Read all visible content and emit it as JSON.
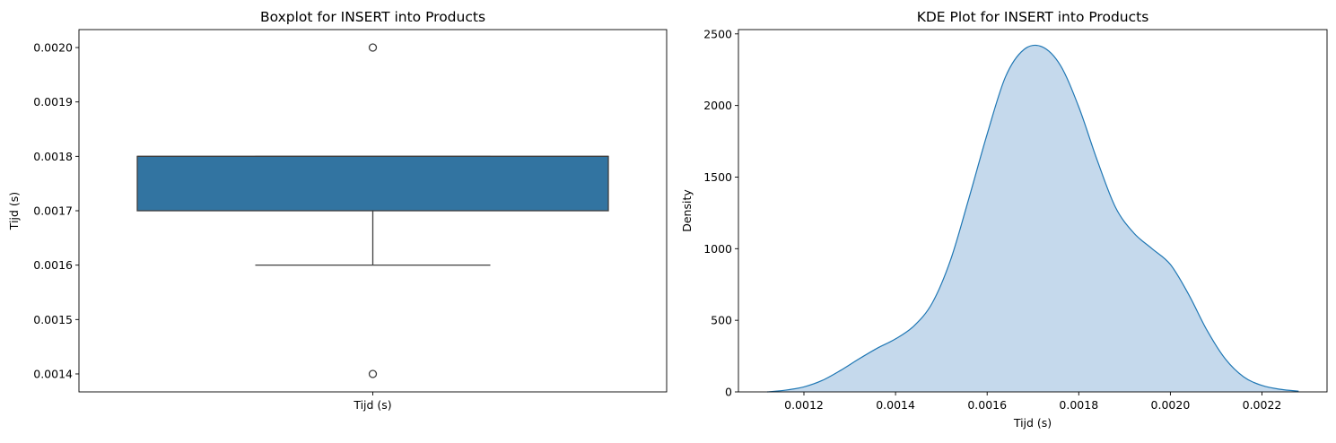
{
  "chart_data": [
    {
      "type": "box",
      "title": "Boxplot for INSERT into Products",
      "xlabel": "Tijd (s)",
      "ylabel": "Tijd (s)",
      "category": "Tijd (s)",
      "ylim": [
        0.001367,
        0.002033
      ],
      "yticks": [
        {
          "value": 0.0014,
          "label": "0.0014"
        },
        {
          "value": 0.0015,
          "label": "0.0015"
        },
        {
          "value": 0.0016,
          "label": "0.0016"
        },
        {
          "value": 0.0017,
          "label": "0.0017"
        },
        {
          "value": 0.0018,
          "label": "0.0018"
        },
        {
          "value": 0.0019,
          "label": "0.0019"
        },
        {
          "value": 0.002,
          "label": "0.0020"
        }
      ],
      "box": {
        "whisker_low": 0.0016,
        "q1": 0.0017,
        "median": 0.0018,
        "q3": 0.0018,
        "whisker_high": 0.0018,
        "outliers": [
          0.0014,
          0.002
        ]
      },
      "color": "#3274a1",
      "grid": false
    },
    {
      "type": "area",
      "title": "KDE Plot for INSERT into Products",
      "xlabel": "Tijd (s)",
      "ylabel": "Density",
      "xlim": [
        0.001057,
        0.002342
      ],
      "ylim": [
        0,
        2530
      ],
      "xticks": [
        {
          "value": 0.0012,
          "label": "0.0012"
        },
        {
          "value": 0.0014,
          "label": "0.0014"
        },
        {
          "value": 0.0016,
          "label": "0.0016"
        },
        {
          "value": 0.0018,
          "label": "0.0018"
        },
        {
          "value": 0.002,
          "label": "0.0020"
        },
        {
          "value": 0.0022,
          "label": "0.0022"
        }
      ],
      "yticks": [
        {
          "value": 0,
          "label": "0"
        },
        {
          "value": 500,
          "label": "500"
        },
        {
          "value": 1000,
          "label": "1000"
        },
        {
          "value": 1500,
          "label": "1500"
        },
        {
          "value": 2000,
          "label": "2000"
        },
        {
          "value": 2500,
          "label": "2500"
        }
      ],
      "x": [
        0.00112,
        0.00116,
        0.0012,
        0.00124,
        0.00128,
        0.00132,
        0.00136,
        0.0014,
        0.00144,
        0.00148,
        0.00152,
        0.00156,
        0.0016,
        0.00164,
        0.00168,
        0.00172,
        0.00176,
        0.0018,
        0.00184,
        0.00188,
        0.00192,
        0.00196,
        0.002,
        0.00204,
        0.00208,
        0.00212,
        0.00216,
        0.0022,
        0.00224,
        0.00228
      ],
      "values": [
        0,
        12,
        35,
        80,
        150,
        230,
        305,
        370,
        460,
        620,
        920,
        1350,
        1800,
        2200,
        2390,
        2410,
        2280,
        1990,
        1620,
        1290,
        1110,
        1000,
        890,
        680,
        430,
        230,
        105,
        45,
        18,
        5
      ],
      "line_color": "#1f77b4",
      "fill_color": "#c5d9ec",
      "grid": false
    }
  ]
}
